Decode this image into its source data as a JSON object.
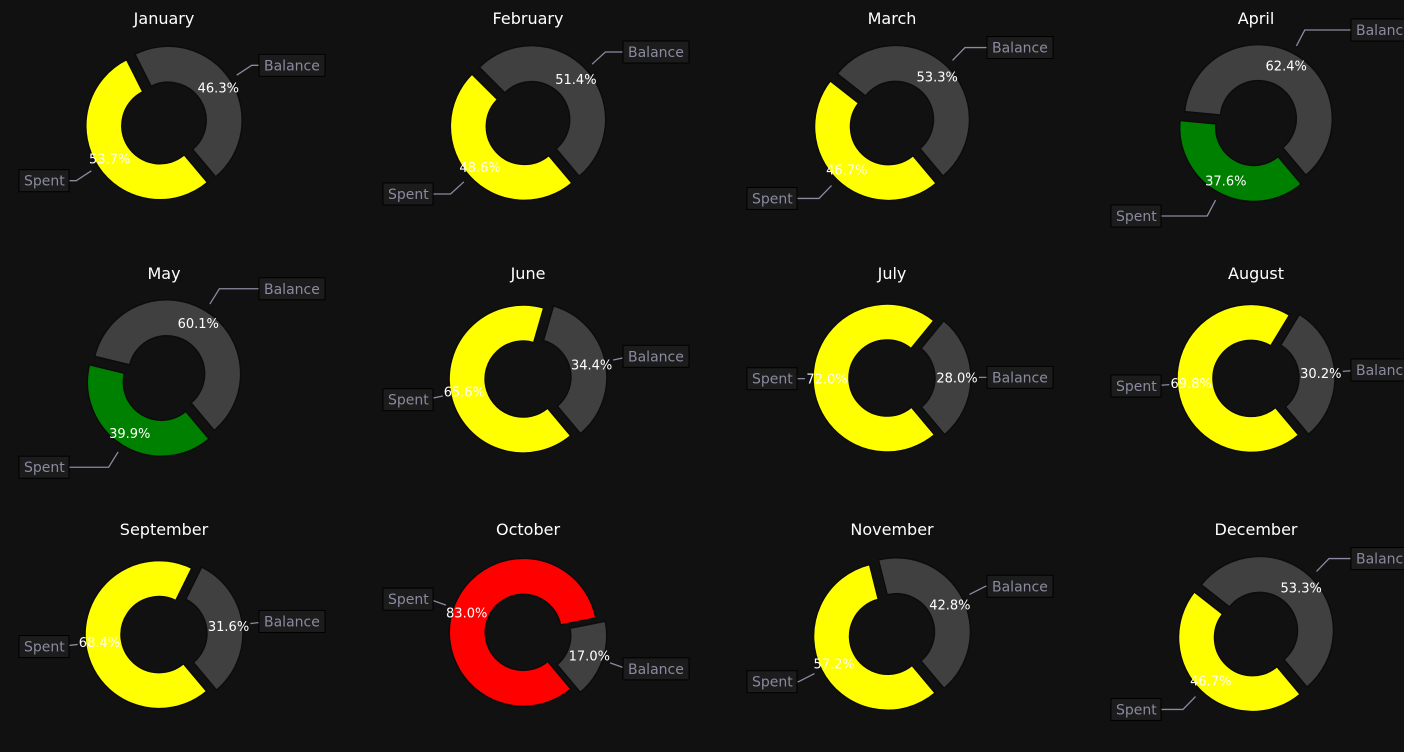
{
  "colors": {
    "background": "#111111",
    "balance": "#404040",
    "spent_ok": "#008000",
    "spent_warn": "#ffff00",
    "spent_over": "#ff0000"
  },
  "chart_data": [
    {
      "type": "pie",
      "title": "January",
      "labels": [
        "Spent",
        "Balance"
      ],
      "values": [
        53.7,
        46.3
      ],
      "value_labels": [
        "53.7%",
        "46.3%"
      ],
      "spent_color": "#ffff00"
    },
    {
      "type": "pie",
      "title": "February",
      "labels": [
        "Spent",
        "Balance"
      ],
      "values": [
        48.6,
        51.4
      ],
      "value_labels": [
        "48.6%",
        "51.4%"
      ],
      "spent_color": "#ffff00"
    },
    {
      "type": "pie",
      "title": "March",
      "labels": [
        "Spent",
        "Balance"
      ],
      "values": [
        46.7,
        53.3
      ],
      "value_labels": [
        "46.7%",
        "53.3%"
      ],
      "spent_color": "#ffff00"
    },
    {
      "type": "pie",
      "title": "April",
      "labels": [
        "Spent",
        "Balance"
      ],
      "values": [
        37.6,
        62.4
      ],
      "value_labels": [
        "37.6%",
        "62.4%"
      ],
      "spent_color": "#008000"
    },
    {
      "type": "pie",
      "title": "May",
      "labels": [
        "Spent",
        "Balance"
      ],
      "values": [
        39.9,
        60.1
      ],
      "value_labels": [
        "39.9%",
        "60.1%"
      ],
      "spent_color": "#008000"
    },
    {
      "type": "pie",
      "title": "June",
      "labels": [
        "Spent",
        "Balance"
      ],
      "values": [
        65.6,
        34.4
      ],
      "value_labels": [
        "65.6%",
        "34.4%"
      ],
      "spent_color": "#ffff00"
    },
    {
      "type": "pie",
      "title": "July",
      "labels": [
        "Spent",
        "Balance"
      ],
      "values": [
        72.0,
        28.0
      ],
      "value_labels": [
        "72.0%",
        "28.0%"
      ],
      "spent_color": "#ffff00"
    },
    {
      "type": "pie",
      "title": "August",
      "labels": [
        "Spent",
        "Balance"
      ],
      "values": [
        69.8,
        30.2
      ],
      "value_labels": [
        "69.8%",
        "30.2%"
      ],
      "spent_color": "#ffff00"
    },
    {
      "type": "pie",
      "title": "September",
      "labels": [
        "Spent",
        "Balance"
      ],
      "values": [
        68.4,
        31.6
      ],
      "value_labels": [
        "68.4%",
        "31.6%"
      ],
      "spent_color": "#ffff00"
    },
    {
      "type": "pie",
      "title": "October",
      "labels": [
        "Spent",
        "Balance"
      ],
      "values": [
        83.0,
        17.0
      ],
      "value_labels": [
        "83.0%",
        "17.0%"
      ],
      "spent_color": "#ff0000"
    },
    {
      "type": "pie",
      "title": "November",
      "labels": [
        "Spent",
        "Balance"
      ],
      "values": [
        57.2,
        42.8
      ],
      "value_labels": [
        "57.2%",
        "42.8%"
      ],
      "spent_color": "#ffff00"
    },
    {
      "type": "pie",
      "title": "December",
      "labels": [
        "Spent",
        "Balance"
      ],
      "values": [
        46.7,
        53.3
      ],
      "value_labels": [
        "46.7%",
        "53.3%"
      ],
      "spent_color": "#ffff00"
    }
  ]
}
